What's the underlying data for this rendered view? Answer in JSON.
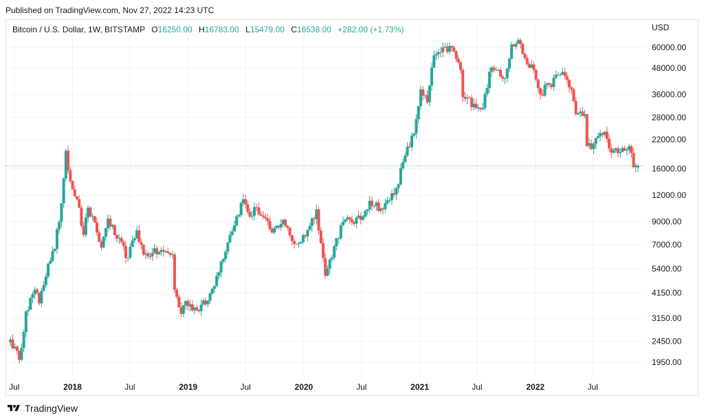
{
  "published": "Published on TradingView.com, Nov 27, 2022 14:23 UTC",
  "legend": {
    "symbol": "Bitcoin / U.S. Dollar, 1W, BITSTAMP",
    "o_key": "O",
    "o_val": "16250.00",
    "h_key": "H",
    "h_val": "16783.00",
    "l_key": "L",
    "l_val": "15479.00",
    "c_key": "C",
    "c_val": "16538.00",
    "change": "+282.00 (+1.73%)"
  },
  "currency": "USD",
  "footer": {
    "brand": "TradingView",
    "logo_icon": "tradingview-logo-icon"
  },
  "colors": {
    "up": "#26a69a",
    "down": "#ef5350",
    "grid": "#f0f3fa",
    "axis_text": "#131722",
    "price_line": "#26a69a"
  },
  "chart_data": {
    "type": "candlestick",
    "scale": "log",
    "ylim": [
      1700,
      72000
    ],
    "y_ticks": [
      "60000.00",
      "48000.00",
      "36000.00",
      "28000.00",
      "22000.00",
      "16000.00",
      "12000.00",
      "9000.00",
      "7000.00",
      "5400.00",
      "4150.00",
      "3150.00",
      "2450.00",
      "1950.00"
    ],
    "x_ticks": [
      {
        "label": "Jul",
        "bold": false
      },
      {
        "label": "2018",
        "bold": true
      },
      {
        "label": "Jul",
        "bold": false
      },
      {
        "label": "2019",
        "bold": true
      },
      {
        "label": "Jul",
        "bold": false
      },
      {
        "label": "2020",
        "bold": true
      },
      {
        "label": "Jul",
        "bold": false
      },
      {
        "label": "2021",
        "bold": true
      },
      {
        "label": "Jul",
        "bold": false
      },
      {
        "label": "2022",
        "bold": true
      },
      {
        "label": "Jul",
        "bold": false
      }
    ],
    "current_price": 16538,
    "grid": true,
    "legend_position": "top-left",
    "anchors_date_close": [
      [
        "2017-06-19",
        2500
      ],
      [
        "2017-07-17",
        2000
      ],
      [
        "2017-08-07",
        3400
      ],
      [
        "2017-09-04",
        4300
      ],
      [
        "2017-09-18",
        3700
      ],
      [
        "2017-10-16",
        5700
      ],
      [
        "2017-11-06",
        6700
      ],
      [
        "2017-11-27",
        11000
      ],
      [
        "2017-12-11",
        19500
      ],
      [
        "2017-12-25",
        14000
      ],
      [
        "2018-01-15",
        11500
      ],
      [
        "2018-02-05",
        7800
      ],
      [
        "2018-02-19",
        10500
      ],
      [
        "2018-03-19",
        8000
      ],
      [
        "2018-04-02",
        6800
      ],
      [
        "2018-04-23",
        9300
      ],
      [
        "2018-05-21",
        7500
      ],
      [
        "2018-06-25",
        6100
      ],
      [
        "2018-07-23",
        8200
      ],
      [
        "2018-08-13",
        6300
      ],
      [
        "2018-09-10",
        6400
      ],
      [
        "2018-10-15",
        6500
      ],
      [
        "2018-11-12",
        6300
      ],
      [
        "2018-11-19",
        4300
      ],
      [
        "2018-12-10",
        3300
      ],
      [
        "2018-12-24",
        3800
      ],
      [
        "2019-01-28",
        3450
      ],
      [
        "2019-03-04",
        3800
      ],
      [
        "2019-04-01",
        5000
      ],
      [
        "2019-05-13",
        7800
      ],
      [
        "2019-06-24",
        11500
      ],
      [
        "2019-07-15",
        9500
      ],
      [
        "2019-08-05",
        10500
      ],
      [
        "2019-09-23",
        8000
      ],
      [
        "2019-10-28",
        9200
      ],
      [
        "2019-11-25",
        7300
      ],
      [
        "2019-12-16",
        7100
      ],
      [
        "2020-01-20",
        8600
      ],
      [
        "2020-02-10",
        10300
      ],
      [
        "2020-03-09",
        5000
      ],
      [
        "2020-04-06",
        6900
      ],
      [
        "2020-05-04",
        9000
      ],
      [
        "2020-06-29",
        9200
      ],
      [
        "2020-07-27",
        11300
      ],
      [
        "2020-09-07",
        10300
      ],
      [
        "2020-10-19",
        13000
      ],
      [
        "2020-11-16",
        18500
      ],
      [
        "2020-12-14",
        23500
      ],
      [
        "2021-01-04",
        38000
      ],
      [
        "2021-01-25",
        33000
      ],
      [
        "2021-02-15",
        55000
      ],
      [
        "2021-03-08",
        57000
      ],
      [
        "2021-04-12",
        60000
      ],
      [
        "2021-05-10",
        47000
      ],
      [
        "2021-05-17",
        35000
      ],
      [
        "2021-06-21",
        32500
      ],
      [
        "2021-07-19",
        31000
      ],
      [
        "2021-08-09",
        46000
      ],
      [
        "2021-09-06",
        47000
      ],
      [
        "2021-09-27",
        43000
      ],
      [
        "2021-10-18",
        62000
      ],
      [
        "2021-11-08",
        65000
      ],
      [
        "2021-12-06",
        50000
      ],
      [
        "2021-12-27",
        47000
      ],
      [
        "2022-01-17",
        36000
      ],
      [
        "2022-02-14",
        40000
      ],
      [
        "2022-03-28",
        46000
      ],
      [
        "2022-04-25",
        38000
      ],
      [
        "2022-05-09",
        29000
      ],
      [
        "2022-06-06",
        29000
      ],
      [
        "2022-06-13",
        20500
      ],
      [
        "2022-07-04",
        21000
      ],
      [
        "2022-08-08",
        24000
      ],
      [
        "2022-08-22",
        20000
      ],
      [
        "2022-09-19",
        19000
      ],
      [
        "2022-10-24",
        20500
      ],
      [
        "2022-11-07",
        16300
      ],
      [
        "2022-11-21",
        16538
      ]
    ],
    "last_candle": {
      "open": 16250,
      "high": 16783,
      "low": 15479,
      "close": 16538
    }
  }
}
